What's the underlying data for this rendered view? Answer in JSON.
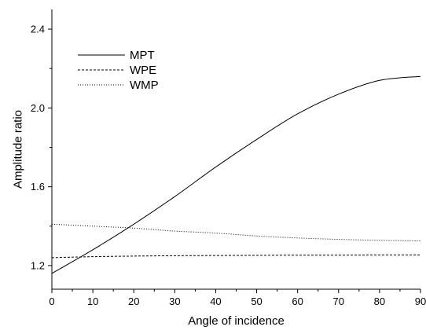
{
  "chart_data": {
    "type": "line",
    "title": "",
    "xlabel": "Angle of incidence",
    "ylabel": "Amplitude ratio",
    "xlim": [
      0,
      90
    ],
    "ylim": [
      1.08,
      2.5
    ],
    "x_ticks": [
      0,
      10,
      20,
      30,
      40,
      50,
      60,
      70,
      80,
      90
    ],
    "x_tick_labels": [
      "0",
      "10",
      "20",
      "30",
      "40",
      "50",
      "60",
      "70",
      "80",
      "90"
    ],
    "y_ticks": [
      1.2,
      1.6,
      2.0,
      2.4
    ],
    "y_tick_labels": [
      "1.2",
      "1.6",
      "2.0",
      "2.4"
    ],
    "grid": false,
    "legend_position": "top-left",
    "x": [
      0,
      10,
      20,
      30,
      40,
      50,
      60,
      70,
      80,
      90
    ],
    "series": [
      {
        "name": "MPT",
        "style": "solid",
        "values": [
          1.16,
          1.28,
          1.41,
          1.55,
          1.7,
          1.84,
          1.97,
          2.07,
          2.14,
          2.16
        ]
      },
      {
        "name": "WPE",
        "style": "dashed",
        "values": [
          1.24,
          1.245,
          1.248,
          1.25,
          1.251,
          1.252,
          1.253,
          1.253,
          1.254,
          1.254
        ]
      },
      {
        "name": "WMP",
        "style": "dotted",
        "values": [
          1.41,
          1.4,
          1.39,
          1.375,
          1.365,
          1.35,
          1.34,
          1.333,
          1.328,
          1.325
        ]
      }
    ]
  }
}
